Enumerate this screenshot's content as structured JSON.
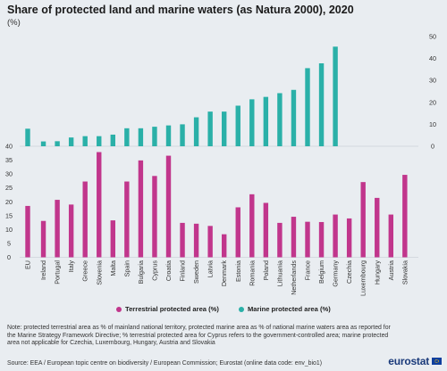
{
  "title": "Share of protected land and marine waters (as Natura 2000), 2020",
  "unit": "(%)",
  "colors": {
    "terrestrial": "#c1368c",
    "marine": "#2ab0a8",
    "background": "#e9edf1"
  },
  "legend": {
    "terrestrial": "Terrestrial protected area (%)",
    "marine": "Marine protected area (%)"
  },
  "note": "Note: protected terrestrial area as % of mainland national territory, protected marine area as % of national marine waters area as reported for the Marine Strategy Framework Directive; % terrestrial protected area for Cyprus refers to the government-controlled  area; marine protected area not applicable for Czechia, Luxembourg, Hungary, Austria and Slovakia",
  "source": "Source: EEA / European topic centre on biodiversity / European Commission; Eurostat (online data code: env_bio1)",
  "logo": {
    "text": "eurostat",
    "icon": "eu-flag-icon"
  },
  "chart_data": [
    {
      "type": "bar",
      "name": "marine",
      "ylim": [
        0,
        50
      ],
      "yticks": [
        0,
        10,
        20,
        30,
        40,
        50
      ],
      "axis_side": "right",
      "categories": [
        "EU",
        "Ireland",
        "Portugal",
        "Italy",
        "Greece",
        "Slovenia",
        "Malta",
        "Spain",
        "Bulgaria",
        "Cyprus",
        "Croatia",
        "Finland",
        "Sweden",
        "Latvia",
        "Denmark",
        "Estonia",
        "Romania",
        "Poland",
        "Lithuania",
        "Netherlands",
        "France",
        "Belgium",
        "Germany",
        "Czechia",
        "Luxembourg",
        "Hungary",
        "Austria",
        "Slovakia"
      ],
      "series": [
        {
          "name": "Marine protected area (%)",
          "values": [
            8.0,
            2.2,
            2.3,
            4.0,
            4.6,
            4.6,
            5.3,
            8.2,
            8.2,
            8.9,
            9.5,
            10.0,
            13.2,
            15.8,
            15.8,
            18.5,
            21.4,
            22.5,
            24.2,
            25.7,
            35.6,
            37.8,
            45.4,
            null,
            null,
            null,
            null,
            null
          ]
        }
      ]
    },
    {
      "type": "bar",
      "name": "terrestrial",
      "ylim": [
        0,
        40
      ],
      "yticks": [
        0,
        5,
        10,
        15,
        20,
        25,
        30,
        35,
        40
      ],
      "axis_side": "left",
      "categories": [
        "EU",
        "Ireland",
        "Portugal",
        "Italy",
        "Greece",
        "Slovenia",
        "Malta",
        "Spain",
        "Bulgaria",
        "Cyprus",
        "Croatia",
        "Finland",
        "Sweden",
        "Latvia",
        "Denmark",
        "Estonia",
        "Romania",
        "Poland",
        "Lithuania",
        "Netherlands",
        "France",
        "Belgium",
        "Germany",
        "Czechia",
        "Luxembourg",
        "Hungary",
        "Austria",
        "Slovakia"
      ],
      "series": [
        {
          "name": "Terrestrial protected area (%)",
          "values": [
            18.5,
            13.1,
            20.7,
            19.0,
            27.3,
            37.9,
            13.3,
            27.3,
            34.9,
            29.3,
            36.6,
            12.4,
            12.1,
            11.3,
            8.3,
            18.0,
            22.7,
            19.6,
            12.4,
            14.6,
            12.8,
            12.7,
            15.4,
            14.0,
            27.1,
            21.4,
            15.4,
            29.7
          ]
        }
      ]
    }
  ]
}
